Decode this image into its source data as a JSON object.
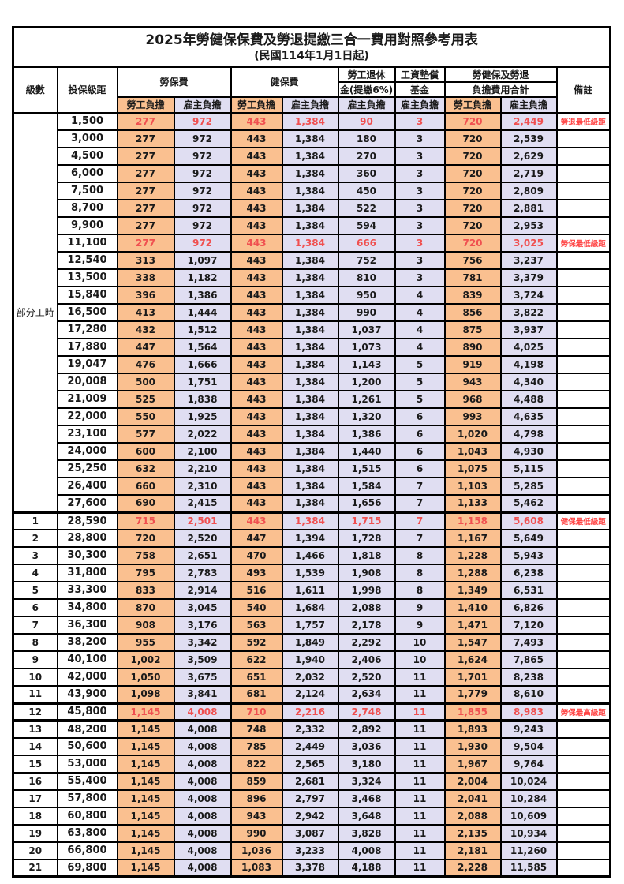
{
  "title": "2025年勞健保保費及勞退提繳三合一費用對照參考用表",
  "subtitle": "(民國114年1月1日起)",
  "colors": {
    "employee_bg": "#FAC090",
    "employer_bg": "#E0DEF2",
    "red_number": "#F05050",
    "red_note": "#FF4545",
    "border": "#000000"
  },
  "header": {
    "level": "級數",
    "bracket": "投保級距",
    "labor_insurance": "勞保費",
    "health_insurance": "健保費",
    "pension_line1": "勞工退休",
    "pension_line2": "金(提繳6%)",
    "wage_fund_line1": "工資墊償",
    "wage_fund_line2": "基金",
    "total_line1": "勞健保及勞退",
    "total_line2": "負擔費用合計",
    "note": "備註",
    "employee_share": "勞工負擔",
    "employer_share": "雇主負擔"
  },
  "table": {
    "section_label": "部分工時",
    "rows": [
      {
        "section": "部分工時",
        "sectionRows": 23,
        "bracket": "1,500",
        "v": [
          "277",
          "972",
          "443",
          "1,384",
          "90",
          "3",
          "720",
          "2,449"
        ],
        "note": "勞退最低級距",
        "red": true
      },
      {
        "bracket": "3,000",
        "v": [
          "277",
          "972",
          "443",
          "1,384",
          "180",
          "3",
          "720",
          "2,539"
        ]
      },
      {
        "bracket": "4,500",
        "v": [
          "277",
          "972",
          "443",
          "1,384",
          "270",
          "3",
          "720",
          "2,629"
        ]
      },
      {
        "bracket": "6,000",
        "v": [
          "277",
          "972",
          "443",
          "1,384",
          "360",
          "3",
          "720",
          "2,719"
        ]
      },
      {
        "bracket": "7,500",
        "v": [
          "277",
          "972",
          "443",
          "1,384",
          "450",
          "3",
          "720",
          "2,809"
        ]
      },
      {
        "bracket": "8,700",
        "v": [
          "277",
          "972",
          "443",
          "1,384",
          "522",
          "3",
          "720",
          "2,881"
        ]
      },
      {
        "bracket": "9,900",
        "v": [
          "277",
          "972",
          "443",
          "1,384",
          "594",
          "3",
          "720",
          "2,953"
        ]
      },
      {
        "bracket": "11,100",
        "v": [
          "277",
          "972",
          "443",
          "1,384",
          "666",
          "3",
          "720",
          "3,025"
        ],
        "note": "勞保最低級距",
        "red": true
      },
      {
        "bracket": "12,540",
        "v": [
          "313",
          "1,097",
          "443",
          "1,384",
          "752",
          "3",
          "756",
          "3,237"
        ]
      },
      {
        "bracket": "13,500",
        "v": [
          "338",
          "1,182",
          "443",
          "1,384",
          "810",
          "3",
          "781",
          "3,379"
        ]
      },
      {
        "bracket": "15,840",
        "v": [
          "396",
          "1,386",
          "443",
          "1,384",
          "950",
          "4",
          "839",
          "3,724"
        ]
      },
      {
        "bracket": "16,500",
        "v": [
          "413",
          "1,444",
          "443",
          "1,384",
          "990",
          "4",
          "856",
          "3,822"
        ]
      },
      {
        "bracket": "17,280",
        "v": [
          "432",
          "1,512",
          "443",
          "1,384",
          "1,037",
          "4",
          "875",
          "3,937"
        ]
      },
      {
        "bracket": "17,880",
        "v": [
          "447",
          "1,564",
          "443",
          "1,384",
          "1,073",
          "4",
          "890",
          "4,025"
        ]
      },
      {
        "bracket": "19,047",
        "v": [
          "476",
          "1,666",
          "443",
          "1,384",
          "1,143",
          "5",
          "919",
          "4,198"
        ]
      },
      {
        "bracket": "20,008",
        "v": [
          "500",
          "1,751",
          "443",
          "1,384",
          "1,200",
          "5",
          "943",
          "4,340"
        ]
      },
      {
        "bracket": "21,009",
        "v": [
          "525",
          "1,838",
          "443",
          "1,384",
          "1,261",
          "5",
          "968",
          "4,488"
        ]
      },
      {
        "bracket": "22,000",
        "v": [
          "550",
          "1,925",
          "443",
          "1,384",
          "1,320",
          "6",
          "993",
          "4,635"
        ]
      },
      {
        "bracket": "23,100",
        "v": [
          "577",
          "2,022",
          "443",
          "1,384",
          "1,386",
          "6",
          "1,020",
          "4,798"
        ]
      },
      {
        "bracket": "24,000",
        "v": [
          "600",
          "2,100",
          "443",
          "1,384",
          "1,440",
          "6",
          "1,043",
          "4,930"
        ]
      },
      {
        "bracket": "25,250",
        "v": [
          "632",
          "2,210",
          "443",
          "1,384",
          "1,515",
          "6",
          "1,075",
          "5,115"
        ]
      },
      {
        "bracket": "26,400",
        "v": [
          "660",
          "2,310",
          "443",
          "1,384",
          "1,584",
          "7",
          "1,103",
          "5,285"
        ]
      },
      {
        "bracket": "27,600",
        "v": [
          "690",
          "2,415",
          "443",
          "1,384",
          "1,656",
          "7",
          "1,133",
          "5,462"
        ]
      },
      {
        "level": "1",
        "bracket": "28,590",
        "v": [
          "715",
          "2,501",
          "443",
          "1,384",
          "1,715",
          "7",
          "1,158",
          "5,608"
        ],
        "note": "健保最低級距",
        "red": true,
        "thickTop": true
      },
      {
        "level": "2",
        "bracket": "28,800",
        "v": [
          "720",
          "2,520",
          "447",
          "1,394",
          "1,728",
          "7",
          "1,167",
          "5,649"
        ]
      },
      {
        "level": "3",
        "bracket": "30,300",
        "v": [
          "758",
          "2,651",
          "470",
          "1,466",
          "1,818",
          "8",
          "1,228",
          "5,943"
        ]
      },
      {
        "level": "4",
        "bracket": "31,800",
        "v": [
          "795",
          "2,783",
          "493",
          "1,539",
          "1,908",
          "8",
          "1,288",
          "6,238"
        ]
      },
      {
        "level": "5",
        "bracket": "33,300",
        "v": [
          "833",
          "2,914",
          "516",
          "1,611",
          "1,998",
          "8",
          "1,349",
          "6,531"
        ]
      },
      {
        "level": "6",
        "bracket": "34,800",
        "v": [
          "870",
          "3,045",
          "540",
          "1,684",
          "2,088",
          "9",
          "1,410",
          "6,826"
        ]
      },
      {
        "level": "7",
        "bracket": "36,300",
        "v": [
          "908",
          "3,176",
          "563",
          "1,757",
          "2,178",
          "9",
          "1,471",
          "7,120"
        ]
      },
      {
        "level": "8",
        "bracket": "38,200",
        "v": [
          "955",
          "3,342",
          "592",
          "1,849",
          "2,292",
          "10",
          "1,547",
          "7,493"
        ]
      },
      {
        "level": "9",
        "bracket": "40,100",
        "v": [
          "1,002",
          "3,509",
          "622",
          "1,940",
          "2,406",
          "10",
          "1,624",
          "7,865"
        ]
      },
      {
        "level": "10",
        "bracket": "42,000",
        "v": [
          "1,050",
          "3,675",
          "651",
          "2,032",
          "2,520",
          "11",
          "1,701",
          "8,238"
        ]
      },
      {
        "level": "11",
        "bracket": "43,900",
        "v": [
          "1,098",
          "3,841",
          "681",
          "2,124",
          "2,634",
          "11",
          "1,779",
          "8,610"
        ]
      },
      {
        "level": "12",
        "bracket": "45,800",
        "v": [
          "1,145",
          "4,008",
          "710",
          "2,216",
          "2,748",
          "11",
          "1,855",
          "8,983"
        ],
        "note": "勞保最高級距",
        "red": true,
        "thickTop": true,
        "thickBottom": true
      },
      {
        "level": "13",
        "bracket": "48,200",
        "v": [
          "1,145",
          "4,008",
          "748",
          "2,332",
          "2,892",
          "11",
          "1,893",
          "9,243"
        ]
      },
      {
        "level": "14",
        "bracket": "50,600",
        "v": [
          "1,145",
          "4,008",
          "785",
          "2,449",
          "3,036",
          "11",
          "1,930",
          "9,504"
        ]
      },
      {
        "level": "15",
        "bracket": "53,000",
        "v": [
          "1,145",
          "4,008",
          "822",
          "2,565",
          "3,180",
          "11",
          "1,967",
          "9,764"
        ]
      },
      {
        "level": "16",
        "bracket": "55,400",
        "v": [
          "1,145",
          "4,008",
          "859",
          "2,681",
          "3,324",
          "11",
          "2,004",
          "10,024"
        ]
      },
      {
        "level": "17",
        "bracket": "57,800",
        "v": [
          "1,145",
          "4,008",
          "896",
          "2,797",
          "3,468",
          "11",
          "2,041",
          "10,284"
        ]
      },
      {
        "level": "18",
        "bracket": "60,800",
        "v": [
          "1,145",
          "4,008",
          "943",
          "2,942",
          "3,648",
          "11",
          "2,088",
          "10,609"
        ]
      },
      {
        "level": "19",
        "bracket": "63,800",
        "v": [
          "1,145",
          "4,008",
          "990",
          "3,087",
          "3,828",
          "11",
          "2,135",
          "10,934"
        ]
      },
      {
        "level": "20",
        "bracket": "66,800",
        "v": [
          "1,145",
          "4,008",
          "1,036",
          "3,233",
          "4,008",
          "11",
          "2,181",
          "11,260"
        ]
      },
      {
        "level": "21",
        "bracket": "69,800",
        "v": [
          "1,145",
          "4,008",
          "1,083",
          "3,378",
          "4,188",
          "11",
          "2,228",
          "11,585"
        ]
      }
    ]
  }
}
